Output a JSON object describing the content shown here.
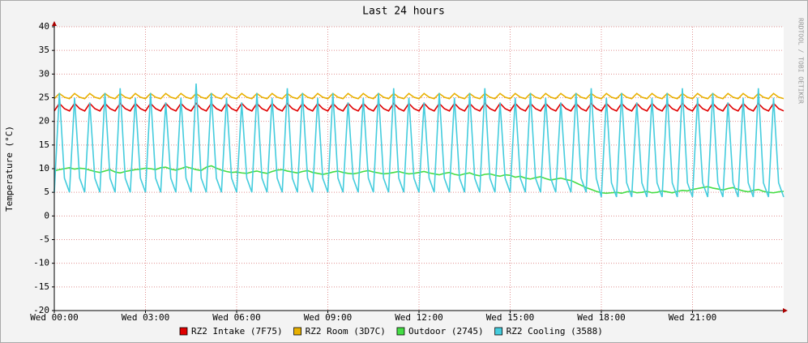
{
  "chart_data": {
    "type": "line",
    "title": "Last 24 hours",
    "y_label": "Temperature (°C)",
    "watermark": "RRDTOOL / TOBI OETIKER",
    "xlim": [
      0,
      1440
    ],
    "ylim": [
      -20,
      40
    ],
    "xticks": [
      {
        "value": 0,
        "label": "Wed 00:00"
      },
      {
        "value": 180,
        "label": "Wed 03:00"
      },
      {
        "value": 360,
        "label": "Wed 06:00"
      },
      {
        "value": 540,
        "label": "Wed 09:00"
      },
      {
        "value": 720,
        "label": "Wed 12:00"
      },
      {
        "value": 900,
        "label": "Wed 15:00"
      },
      {
        "value": 1080,
        "label": "Wed 18:00"
      },
      {
        "value": 1260,
        "label": "Wed 21:00"
      }
    ],
    "yticks": [
      -20,
      -15,
      -10,
      -5,
      0,
      5,
      10,
      15,
      20,
      25,
      30,
      35,
      40
    ],
    "grid": true,
    "x": [
      0,
      10,
      20,
      30,
      40,
      50,
      60,
      70,
      80,
      90,
      100,
      110,
      120,
      130,
      140,
      150,
      160,
      170,
      180,
      190,
      200,
      210,
      220,
      230,
      240,
      250,
      260,
      270,
      280,
      290,
      300,
      310,
      320,
      330,
      340,
      350,
      360,
      370,
      380,
      390,
      400,
      410,
      420,
      430,
      440,
      450,
      460,
      470,
      480,
      490,
      500,
      510,
      520,
      530,
      540,
      550,
      560,
      570,
      580,
      590,
      600,
      610,
      620,
      630,
      640,
      650,
      660,
      670,
      680,
      690,
      700,
      710,
      720,
      730,
      740,
      750,
      760,
      770,
      780,
      790,
      800,
      810,
      820,
      830,
      840,
      850,
      860,
      870,
      880,
      890,
      900,
      910,
      920,
      930,
      940,
      950,
      960,
      970,
      980,
      990,
      1000,
      1010,
      1020,
      1030,
      1040,
      1050,
      1060,
      1070,
      1080,
      1090,
      1100,
      1110,
      1120,
      1130,
      1140,
      1150,
      1160,
      1170,
      1180,
      1190,
      1200,
      1210,
      1220,
      1230,
      1240,
      1250,
      1260,
      1270,
      1280,
      1290,
      1300,
      1310,
      1320,
      1330,
      1340,
      1350,
      1360,
      1370,
      1380,
      1390,
      1400,
      1410,
      1420,
      1430,
      1440
    ],
    "series": [
      {
        "name": "RZ2 Intake (7F75)",
        "color": "#e00000",
        "values": [
          22.2,
          23.8,
          22.7,
          22.2,
          23.8,
          22.7,
          22.2,
          23.8,
          22.7,
          22.2,
          23.8,
          22.7,
          22.2,
          23.8,
          22.7,
          22.2,
          23.8,
          22.7,
          22.2,
          23.8,
          22.7,
          22.2,
          23.8,
          22.7,
          22.2,
          23.8,
          22.7,
          22.2,
          23.8,
          22.7,
          22.2,
          23.8,
          22.7,
          22.2,
          23.8,
          22.7,
          22.2,
          23.8,
          22.7,
          22.2,
          23.8,
          22.7,
          22.2,
          23.8,
          22.7,
          22.2,
          23.8,
          22.7,
          22.2,
          23.8,
          22.7,
          22.2,
          23.8,
          22.7,
          22.2,
          23.8,
          22.7,
          22.2,
          23.8,
          22.7,
          22.2,
          23.8,
          22.7,
          22.2,
          23.8,
          22.7,
          22.2,
          23.8,
          22.7,
          22.2,
          23.8,
          22.7,
          22.2,
          23.8,
          22.7,
          22.2,
          23.8,
          22.7,
          22.2,
          23.8,
          22.7,
          22.2,
          23.8,
          22.7,
          22.2,
          23.8,
          22.7,
          22.2,
          23.8,
          22.7,
          22.2,
          23.8,
          22.7,
          22.2,
          23.8,
          22.7,
          22.2,
          23.8,
          22.7,
          22.2,
          23.8,
          22.7,
          22.2,
          23.8,
          22.7,
          22.2,
          23.8,
          22.7,
          22.2,
          23.8,
          22.7,
          22.2,
          23.8,
          22.7,
          22.2,
          23.8,
          22.7,
          22.2,
          23.8,
          22.7,
          22.2,
          23.8,
          22.7,
          22.2,
          23.8,
          22.7,
          22.2,
          23.8,
          22.7,
          22.2,
          23.8,
          22.7,
          22.2,
          23.8,
          22.7,
          22.2,
          23.8,
          22.7,
          22.2,
          23.8,
          22.7,
          22.2,
          23.8,
          22.7,
          22.2
        ]
      },
      {
        "name": "RZ2 Room (3D7C)",
        "color": "#e8b000",
        "values": [
          24.8,
          25.9,
          25.1,
          24.8,
          25.9,
          25.1,
          24.8,
          25.9,
          25.1,
          24.8,
          25.9,
          25.1,
          24.8,
          25.9,
          25.1,
          24.8,
          25.9,
          25.1,
          24.8,
          25.9,
          25.1,
          24.8,
          25.9,
          25.1,
          24.8,
          25.9,
          25.1,
          24.8,
          25.9,
          25.1,
          24.8,
          25.9,
          25.1,
          24.8,
          25.9,
          25.1,
          24.8,
          25.9,
          25.1,
          24.8,
          25.9,
          25.1,
          24.8,
          25.9,
          25.1,
          24.8,
          25.9,
          25.1,
          24.8,
          25.9,
          25.1,
          24.8,
          25.9,
          25.1,
          24.8,
          25.9,
          25.1,
          24.8,
          25.9,
          25.1,
          24.8,
          25.9,
          25.1,
          24.8,
          25.9,
          25.1,
          24.8,
          25.9,
          25.1,
          24.8,
          25.9,
          25.1,
          24.8,
          25.9,
          25.1,
          24.8,
          25.9,
          25.1,
          24.8,
          25.9,
          25.1,
          24.8,
          25.9,
          25.1,
          24.8,
          25.9,
          25.1,
          24.8,
          25.9,
          25.1,
          24.8,
          25.9,
          25.1,
          24.8,
          25.9,
          25.1,
          24.8,
          25.9,
          25.1,
          24.8,
          25.9,
          25.1,
          24.8,
          25.9,
          25.1,
          24.8,
          25.9,
          25.1,
          24.8,
          25.9,
          25.1,
          24.8,
          25.9,
          25.1,
          24.8,
          25.9,
          25.1,
          24.8,
          25.9,
          25.1,
          24.8,
          25.9,
          25.1,
          24.8,
          25.9,
          25.1,
          24.8,
          25.9,
          25.1,
          24.8,
          25.9,
          25.1,
          24.8,
          25.9,
          25.1,
          24.8,
          25.9,
          25.1,
          24.8,
          25.9,
          25.1,
          24.8,
          25.9,
          25.1,
          24.8
        ]
      },
      {
        "name": "Outdoor (2745)",
        "color": "#44dd44",
        "values": [
          9.5,
          9.8,
          10,
          10.2,
          9.9,
          10.1,
          10,
          9.7,
          9.4,
          9.2,
          9.5,
          9.8,
          9.3,
          9.1,
          9.4,
          9.6,
          9.8,
          9.9,
          10.1,
          10,
          9.8,
          10.2,
          10.3,
          9.9,
          9.7,
          10,
          10.4,
          10.1,
          9.8,
          9.6,
          10.3,
          10.6,
          10.1,
          9.7,
          9.4,
          9.2,
          9.3,
          9.1,
          9,
          9.3,
          9.5,
          9.2,
          9,
          9.4,
          9.7,
          9.8,
          9.5,
          9.3,
          9.1,
          9.4,
          9.6,
          9.2,
          9,
          8.8,
          9,
          9.3,
          9.5,
          9.2,
          9,
          8.9,
          9.1,
          9.4,
          9.6,
          9.3,
          9.1,
          8.9,
          9,
          9.2,
          9.4,
          9.1,
          8.9,
          9,
          9.2,
          9.4,
          9.1,
          8.9,
          8.7,
          9,
          9.2,
          8.8,
          8.6,
          8.9,
          9.1,
          8.7,
          8.5,
          8.8,
          8.9,
          8.6,
          8.4,
          8.7,
          8.6,
          8.2,
          8.4,
          8,
          7.8,
          8.1,
          8.3,
          7.9,
          7.6,
          7.8,
          8,
          7.7,
          7.5,
          7,
          6.5,
          6,
          5.6,
          5.2,
          4.9,
          4.8,
          4.9,
          5,
          4.8,
          5.1,
          5.2,
          4.9,
          5,
          5.2,
          4.9,
          5,
          5.3,
          5.1,
          4.9,
          5.2,
          5.4,
          5.3,
          5.6,
          5.8,
          6,
          6.2,
          5.9,
          5.7,
          5.5,
          5.8,
          6,
          5.6,
          5.3,
          5.1,
          5.4,
          5.6,
          5.2,
          5,
          4.9,
          5.1,
          5.2
        ]
      },
      {
        "name": "RZ2 Cooling (3588)",
        "color": "#44ccdd",
        "values": [
          5,
          26,
          8,
          5,
          25,
          8,
          5,
          24,
          8,
          5,
          26,
          8,
          5,
          27,
          8,
          5,
          25,
          8,
          5,
          26,
          8,
          5,
          24,
          8,
          5,
          25,
          8,
          5,
          28,
          8,
          5,
          26,
          8,
          5,
          25,
          8,
          5,
          24,
          8,
          5,
          26,
          8,
          5,
          25,
          8,
          5,
          27,
          8,
          5,
          26,
          8,
          5,
          25,
          8,
          5,
          26,
          8,
          5,
          24,
          8,
          5,
          25,
          8,
          5,
          26,
          8,
          5,
          27,
          8,
          5,
          25,
          8,
          5,
          24,
          8,
          5,
          26,
          8,
          5,
          25,
          8,
          5,
          26,
          8,
          5,
          27,
          8,
          5,
          24,
          8,
          5,
          25,
          8,
          5,
          26,
          8,
          5,
          25,
          8,
          5,
          24,
          8,
          5,
          26,
          8,
          5,
          27,
          8,
          4,
          25,
          7,
          4,
          26,
          7,
          4,
          24,
          7,
          4,
          25,
          7,
          4,
          26,
          7,
          4,
          27,
          7,
          4,
          25,
          7,
          4,
          26,
          7,
          4,
          24,
          7,
          4,
          25,
          7,
          4,
          27,
          7,
          4,
          25,
          7,
          4
        ]
      }
    ]
  }
}
